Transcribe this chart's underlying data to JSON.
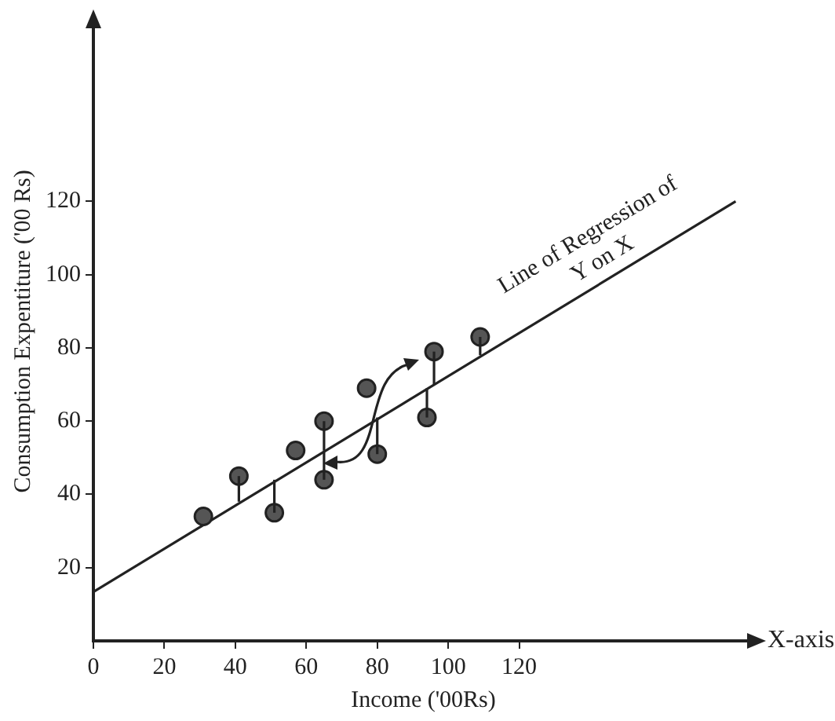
{
  "chart_data": {
    "type": "scatter",
    "xlabel": "Income ('00Rs)",
    "ylabel": "Consumption Expentiture ('00 Rs)",
    "annotations": [
      "X-axis"
    ],
    "xlim": [
      0,
      186
    ],
    "ylim": [
      0,
      169
    ],
    "xticks": [
      0,
      20,
      40,
      60,
      80,
      100,
      120
    ],
    "yticks": [
      20,
      40,
      60,
      80,
      100,
      120
    ],
    "grid": false,
    "legend": false,
    "marker": "circle",
    "series": [
      {
        "color": "#555555",
        "x": [
          31,
          41,
          51,
          57,
          65,
          65,
          77,
          80,
          96,
          94,
          109
        ],
        "values": [
          34,
          45,
          35,
          52,
          60,
          44,
          69,
          51,
          79,
          61,
          83
        ],
        "errors": [
          null,
          [
            38,
            45
          ],
          [
            35,
            44
          ],
          null,
          [
            52,
            60
          ],
          [
            44,
            52
          ],
          null,
          [
            51,
            61
          ],
          [
            70,
            79
          ],
          [
            61,
            69
          ],
          [
            78,
            83
          ]
        ]
      },
      {
        "type": "line",
        "name": "Line of Regression of Y on X",
        "color": "#222222",
        "x": [
          0,
          181
        ],
        "values": [
          13.4,
          120
        ],
        "line_style": "solid",
        "marker": "none"
      }
    ]
  }
}
